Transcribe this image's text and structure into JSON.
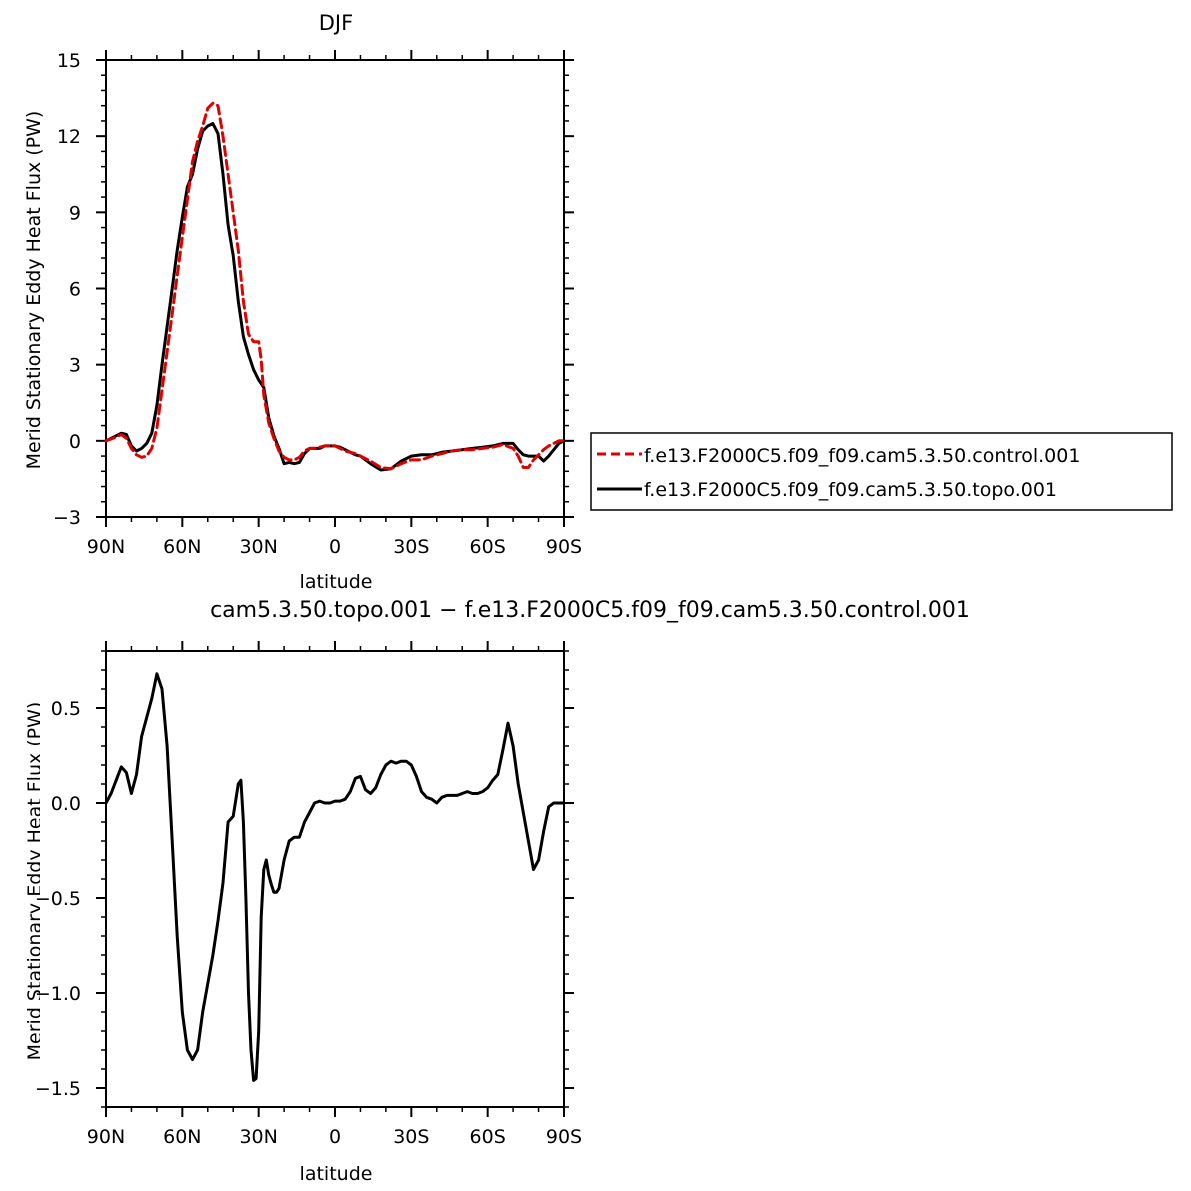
{
  "chart_data": [
    {
      "type": "line",
      "title": "DJF",
      "xlabel": "latitude",
      "ylabel": "Merid Stationary Eddy Heat Flux (PW)",
      "xlim": [
        90,
        -90
      ],
      "ylim": [
        -3,
        15
      ],
      "x_ticks": [
        {
          "value": 90,
          "label": "90N"
        },
        {
          "value": 60,
          "label": "60N"
        },
        {
          "value": 30,
          "label": "30N"
        },
        {
          "value": 0,
          "label": "0"
        },
        {
          "value": -30,
          "label": "30S"
        },
        {
          "value": -60,
          "label": "60S"
        },
        {
          "value": -90,
          "label": "90S"
        }
      ],
      "y_ticks": [
        {
          "value": -3,
          "label": "−3"
        },
        {
          "value": 0,
          "label": "0"
        },
        {
          "value": 3,
          "label": "3"
        },
        {
          "value": 6,
          "label": "6"
        },
        {
          "value": 9,
          "label": "9"
        },
        {
          "value": 12,
          "label": "12"
        },
        {
          "value": 15,
          "label": "15"
        }
      ],
      "legend_position": "right, outside plot",
      "series": [
        {
          "name": "f.e13.F2000C5.f09_f09.cam5.3.50.control.001",
          "color": "#e00000",
          "dash": "dashed",
          "x": [
            90,
            86,
            84,
            82,
            80,
            78,
            76,
            74,
            72,
            70,
            68,
            66,
            64,
            62,
            60,
            58,
            56,
            54,
            52,
            50,
            48,
            46,
            44,
            42,
            40,
            38,
            36,
            34,
            32,
            30,
            29,
            28,
            26,
            24,
            22,
            20,
            18,
            16,
            14,
            12,
            10,
            8,
            6,
            4,
            2,
            0,
            -2,
            -4,
            -6,
            -8,
            -10,
            -14,
            -18,
            -22,
            -26,
            -30,
            -34,
            -38,
            -42,
            -46,
            -50,
            -54,
            -58,
            -62,
            -66,
            -70,
            -72,
            -74,
            -76,
            -78,
            -80,
            -82,
            -84,
            -86,
            -88,
            -90
          ],
          "y": [
            0,
            0.15,
            0.25,
            0.1,
            -0.3,
            -0.55,
            -0.65,
            -0.6,
            -0.3,
            0.5,
            2,
            3.5,
            5,
            6.5,
            8,
            9.5,
            11,
            11.8,
            12.4,
            13.1,
            13.3,
            13.2,
            12,
            10.5,
            9,
            7.5,
            5.5,
            4.2,
            3.9,
            3.9,
            3.2,
            1.8,
            0.7,
            0.1,
            -0.4,
            -0.65,
            -0.75,
            -0.75,
            -0.65,
            -0.4,
            -0.3,
            -0.3,
            -0.25,
            -0.2,
            -0.2,
            -0.2,
            -0.3,
            -0.4,
            -0.45,
            -0.5,
            -0.6,
            -0.8,
            -1.05,
            -1.1,
            -0.9,
            -0.75,
            -0.75,
            -0.6,
            -0.5,
            -0.4,
            -0.35,
            -0.35,
            -0.3,
            -0.25,
            -0.15,
            -0.3,
            -0.6,
            -1.05,
            -1.05,
            -0.75,
            -0.55,
            -0.35,
            -0.2,
            -0.1,
            0,
            0
          ]
        },
        {
          "name": "f.e13.F2000C5.f09_f09.cam5.3.50.topo.001",
          "color": "#000000",
          "dash": "solid",
          "x": [
            90,
            88,
            86,
            84,
            82,
            80,
            78,
            76,
            74,
            72,
            70,
            68,
            66,
            64,
            62,
            60,
            58,
            56,
            54,
            52,
            50,
            48,
            46,
            44,
            42,
            40,
            38,
            36,
            34,
            32,
            30,
            28,
            26,
            24,
            22,
            20,
            18,
            16,
            14,
            12,
            10,
            8,
            6,
            4,
            2,
            0,
            -2,
            -4,
            -6,
            -8,
            -10,
            -14,
            -18,
            -22,
            -26,
            -30,
            -34,
            -38,
            -42,
            -46,
            -50,
            -54,
            -58,
            -62,
            -66,
            -70,
            -72,
            -74,
            -76,
            -78,
            -80,
            -82,
            -84,
            -86,
            -88,
            -90
          ],
          "y": [
            0,
            0.1,
            0.2,
            0.3,
            0.25,
            -0.2,
            -0.4,
            -0.3,
            -0.1,
            0.3,
            1.4,
            3,
            4.5,
            6,
            7.5,
            8.8,
            10,
            10.5,
            11.5,
            12.2,
            12.4,
            12.5,
            12.1,
            10.5,
            8.5,
            7.3,
            5.5,
            4.1,
            3.4,
            2.8,
            2.4,
            2.1,
            0.9,
            0.2,
            -0.3,
            -0.9,
            -0.85,
            -0.9,
            -0.85,
            -0.5,
            -0.3,
            -0.3,
            -0.3,
            -0.2,
            -0.2,
            -0.2,
            -0.25,
            -0.35,
            -0.45,
            -0.55,
            -0.6,
            -0.9,
            -1.15,
            -1.1,
            -0.8,
            -0.6,
            -0.55,
            -0.55,
            -0.45,
            -0.4,
            -0.35,
            -0.3,
            -0.25,
            -0.2,
            -0.1,
            -0.1,
            -0.35,
            -0.55,
            -0.6,
            -0.6,
            -0.6,
            -0.8,
            -0.6,
            -0.35,
            -0.1,
            0
          ]
        }
      ]
    },
    {
      "type": "line",
      "title": "cam5.3.50.topo.001 − f.e13.F2000C5.f09_f09.cam5.3.50.control.001",
      "xlabel": "latitude",
      "ylabel": "Merid Stationary Eddy Heat Flux (PW)",
      "xlim": [
        90,
        -90
      ],
      "ylim": [
        -1.6,
        0.8
      ],
      "x_ticks": [
        {
          "value": 90,
          "label": "90N"
        },
        {
          "value": 60,
          "label": "60N"
        },
        {
          "value": 30,
          "label": "30N"
        },
        {
          "value": 0,
          "label": "0"
        },
        {
          "value": -30,
          "label": "30S"
        },
        {
          "value": -60,
          "label": "60S"
        },
        {
          "value": -90,
          "label": "90S"
        }
      ],
      "y_ticks": [
        {
          "value": -1.5,
          "label": "−1.5"
        },
        {
          "value": -1.0,
          "label": "−1.0"
        },
        {
          "value": -0.5,
          "label": "−0.5"
        },
        {
          "value": 0.0,
          "label": "0.0"
        },
        {
          "value": 0.5,
          "label": "0.5"
        }
      ],
      "series": [
        {
          "name": "",
          "color": "#000000",
          "dash": "solid",
          "x": [
            90,
            88,
            86,
            84,
            82,
            80,
            78,
            76,
            74,
            72,
            70,
            68,
            66,
            64,
            62,
            60,
            58,
            56,
            54,
            52,
            50,
            48,
            46,
            44,
            42,
            40,
            38,
            37,
            36,
            35,
            34,
            33,
            32,
            31,
            30,
            29,
            28,
            27,
            26,
            25,
            24,
            23,
            22,
            20,
            18,
            16,
            14,
            12,
            10,
            8,
            6,
            4,
            2,
            0,
            -2,
            -4,
            -6,
            -8,
            -10,
            -12,
            -14,
            -16,
            -18,
            -20,
            -22,
            -24,
            -26,
            -28,
            -30,
            -32,
            -34,
            -36,
            -38,
            -40,
            -42,
            -44,
            -46,
            -48,
            -50,
            -52,
            -54,
            -56,
            -58,
            -60,
            -62,
            -64,
            -66,
            -68,
            -70,
            -72,
            -74,
            -76,
            -78,
            -80,
            -82,
            -84,
            -86,
            -88,
            -90
          ],
          "y": [
            0,
            0.05,
            0.12,
            0.19,
            0.16,
            0.05,
            0.15,
            0.35,
            0.45,
            0.55,
            0.68,
            0.6,
            0.3,
            -0.2,
            -0.7,
            -1.1,
            -1.3,
            -1.35,
            -1.3,
            -1.1,
            -0.95,
            -0.8,
            -0.62,
            -0.42,
            -0.1,
            -0.07,
            0.1,
            0.12,
            -0.1,
            -0.5,
            -1.0,
            -1.3,
            -1.46,
            -1.45,
            -1.2,
            -0.6,
            -0.35,
            -0.3,
            -0.38,
            -0.43,
            -0.47,
            -0.47,
            -0.45,
            -0.3,
            -0.2,
            -0.18,
            -0.18,
            -0.1,
            -0.05,
            0,
            0.01,
            0,
            0,
            0.01,
            0.01,
            0.02,
            0.06,
            0.13,
            0.14,
            0.07,
            0.05,
            0.08,
            0.15,
            0.2,
            0.22,
            0.21,
            0.22,
            0.22,
            0.2,
            0.14,
            0.06,
            0.03,
            0.02,
            0,
            0.03,
            0.04,
            0.04,
            0.04,
            0.05,
            0.06,
            0.05,
            0.05,
            0.06,
            0.08,
            0.12,
            0.15,
            0.28,
            0.42,
            0.3,
            0.1,
            -0.05,
            -0.2,
            -0.35,
            -0.3,
            -0.15,
            -0.02,
            0,
            0,
            0
          ]
        }
      ]
    }
  ],
  "legend": [
    {
      "label": "f.e13.F2000C5.f09_f09.cam5.3.50.control.001",
      "color": "#e00000",
      "dash": "dashed"
    },
    {
      "label": "f.e13.F2000C5.f09_f09.cam5.3.50.topo.001",
      "color": "#000000",
      "dash": "solid"
    }
  ]
}
